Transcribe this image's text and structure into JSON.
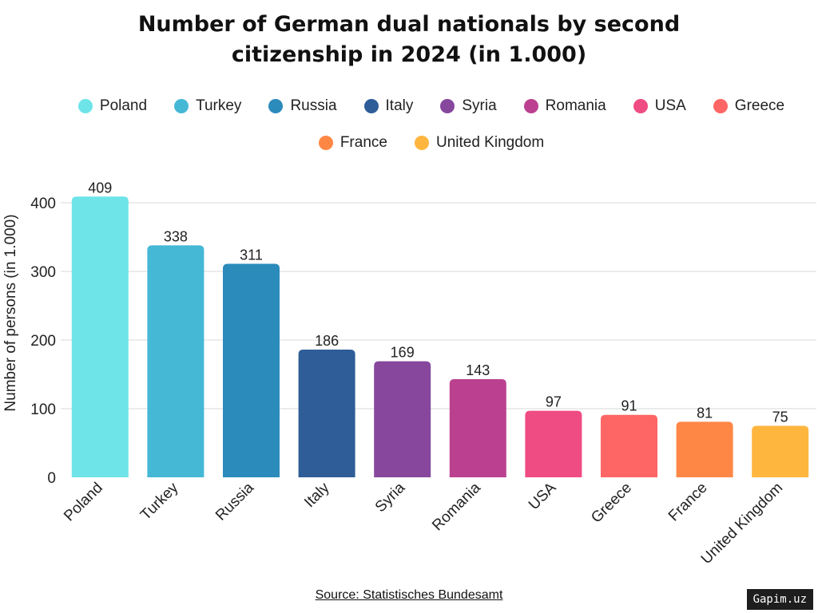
{
  "title_lines": [
    "Number of German dual nationals by second",
    "citizenship in 2024 (in 1.000)"
  ],
  "source": "Source: Statistisches Bundesamt",
  "watermark": "Gapim.uz",
  "chart_data": {
    "type": "bar",
    "title": "Number of German dual nationals by second citizenship in 2024 (in 1.000)",
    "xlabel": "",
    "ylabel": "Number of persons (in 1.000)",
    "ylim": [
      0,
      400
    ],
    "yticks": [
      0,
      100,
      200,
      300,
      400
    ],
    "grid": true,
    "legend": "top",
    "categories": [
      "Poland",
      "Turkey",
      "Russia",
      "Italy",
      "Syria",
      "Romania",
      "USA",
      "Greece",
      "France",
      "United Kingdom"
    ],
    "values": [
      409,
      338,
      311,
      186,
      169,
      143,
      97,
      91,
      81,
      75
    ],
    "colors": [
      "#6ee4e8",
      "#45b8d6",
      "#2b8bbb",
      "#2e5d98",
      "#86479d",
      "#bb4190",
      "#ef4c84",
      "#fe6565",
      "#ff8746",
      "#ffb63f"
    ]
  }
}
